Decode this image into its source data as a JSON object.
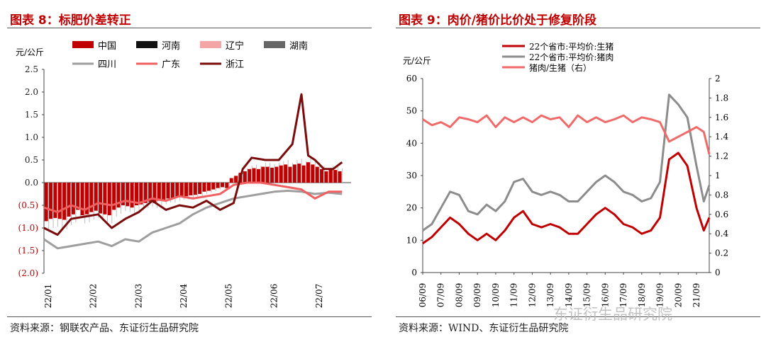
{
  "left": {
    "title": "图表 8：标肥价差转正",
    "source": "资料来源：钢联农产品、东证衍生品研究院"
  },
  "right": {
    "title": "图表 9：肉价/猪价比价处于修复阶段",
    "source": "资料来源：WIND、东证衍生品研究院"
  },
  "watermark": "东证衍生品研究院",
  "chart_data": [
    {
      "type": "bar",
      "ylabel": "元/公斤",
      "ylim": [
        -2.0,
        2.5
      ],
      "yticks": [
        "2.5",
        "2.0",
        "1.5",
        "1.0",
        "0.5",
        "0.0",
        "(0.5)",
        "(1.0)",
        "(1.5)",
        "(2.0)"
      ],
      "ytick_values": [
        2.5,
        2.0,
        1.5,
        1.0,
        0.5,
        0.0,
        -0.5,
        -1.0,
        -1.5,
        -2.0
      ],
      "x_labels": [
        "22/01",
        "22/02",
        "22/03",
        "22/04",
        "22/05",
        "22/06",
        "22/07"
      ],
      "x_label_positions": [
        0,
        1,
        2,
        3,
        4,
        5,
        6
      ],
      "x_range": [
        0,
        6.8
      ],
      "legend": [
        {
          "name": "中国",
          "color": "#c00000",
          "kind": "bar"
        },
        {
          "name": "河南",
          "color": "#111111",
          "kind": "bar"
        },
        {
          "name": "辽宁",
          "color": "#f4a6a6",
          "kind": "bar"
        },
        {
          "name": "湖南",
          "color": "#666666",
          "kind": "bar"
        },
        {
          "name": "四川",
          "color": "#9e9e9e",
          "kind": "line"
        },
        {
          "name": "广东",
          "color": "#f06060",
          "kind": "line"
        },
        {
          "name": "浙江",
          "color": "#7a0c0c",
          "kind": "line"
        }
      ],
      "bars_china": {
        "x": [
          0.05,
          0.15,
          0.25,
          0.35,
          0.45,
          0.55,
          0.65,
          0.75,
          0.85,
          0.95,
          1.05,
          1.15,
          1.25,
          1.35,
          1.45,
          1.55,
          1.65,
          1.75,
          1.85,
          1.95,
          2.05,
          2.15,
          2.25,
          2.35,
          2.45,
          2.55,
          2.65,
          2.75,
          2.85,
          2.95,
          3.05,
          3.15,
          3.25,
          3.35,
          3.45,
          3.55,
          3.65,
          3.75,
          3.85,
          3.95,
          4.05,
          4.15,
          4.25,
          4.35,
          4.45,
          4.55,
          4.65,
          4.75,
          4.85,
          4.95,
          5.05,
          5.15,
          5.25,
          5.35,
          5.45,
          5.55,
          5.65,
          5.75,
          5.85,
          5.95,
          6.05,
          6.15,
          6.25,
          6.35,
          6.45,
          6.55
        ],
        "values": [
          -0.85,
          -0.8,
          -0.78,
          -0.8,
          -0.82,
          -0.75,
          -0.7,
          -0.6,
          -0.72,
          -0.7,
          -0.65,
          -0.62,
          -0.68,
          -0.7,
          -0.72,
          -0.6,
          -0.55,
          -0.5,
          -0.52,
          -0.55,
          -0.5,
          -0.48,
          -0.45,
          -0.42,
          -0.45,
          -0.4,
          -0.38,
          -0.35,
          -0.35,
          -0.32,
          -0.3,
          -0.3,
          -0.28,
          -0.27,
          -0.25,
          -0.2,
          -0.18,
          -0.15,
          -0.12,
          -0.1,
          -0.12,
          0.1,
          0.15,
          0.22,
          0.25,
          0.3,
          0.32,
          0.3,
          0.35,
          0.35,
          0.33,
          0.35,
          0.38,
          0.4,
          0.35,
          0.4,
          0.42,
          0.38,
          0.45,
          0.4,
          0.35,
          0.3,
          0.25,
          0.3,
          0.28,
          0.25
        ]
      },
      "lines": [
        {
          "name": "四川",
          "color": "#9e9e9e",
          "x": [
            0,
            0.3,
            0.6,
            0.9,
            1.2,
            1.5,
            1.8,
            2.1,
            2.4,
            2.7,
            3.0,
            3.3,
            3.6,
            3.9,
            4.2,
            4.5,
            4.8,
            5.1,
            5.4,
            5.7,
            6.0,
            6.3,
            6.6
          ],
          "y": [
            -1.25,
            -1.45,
            -1.4,
            -1.35,
            -1.3,
            -1.4,
            -1.25,
            -1.3,
            -1.1,
            -1.0,
            -0.9,
            -0.7,
            -0.55,
            -0.45,
            -0.35,
            -0.3,
            -0.25,
            -0.2,
            -0.18,
            -0.2,
            -0.25,
            -0.22,
            -0.25
          ]
        },
        {
          "name": "广东",
          "color": "#f06060",
          "x": [
            0,
            0.3,
            0.6,
            0.9,
            1.2,
            1.5,
            1.8,
            2.1,
            2.4,
            2.7,
            3.0,
            3.3,
            3.6,
            3.9,
            4.2,
            4.5,
            4.8,
            5.1,
            5.4,
            5.7,
            6.0,
            6.3,
            6.6
          ],
          "y": [
            -0.55,
            -0.65,
            -0.5,
            -0.6,
            -0.45,
            -0.5,
            -0.4,
            -0.45,
            -0.35,
            -0.4,
            -0.3,
            -0.35,
            -0.3,
            -0.25,
            -0.05,
            0.0,
            0.0,
            -0.05,
            -0.1,
            -0.15,
            -0.35,
            -0.2,
            -0.2
          ]
        },
        {
          "name": "浙江",
          "color": "#7a0c0c",
          "x": [
            0,
            0.3,
            0.6,
            0.9,
            1.2,
            1.5,
            1.8,
            2.1,
            2.4,
            2.7,
            3.0,
            3.3,
            3.6,
            3.9,
            4.2,
            4.4,
            4.6,
            4.9,
            5.2,
            5.5,
            5.7,
            5.85,
            6.0,
            6.2,
            6.4,
            6.6
          ],
          "y": [
            -1.0,
            -1.15,
            -0.8,
            -0.75,
            -0.7,
            -1.0,
            -0.8,
            -0.65,
            -0.4,
            -0.6,
            -0.5,
            -0.55,
            -0.4,
            -0.6,
            -0.45,
            0.3,
            0.55,
            0.5,
            0.5,
            0.85,
            1.95,
            0.6,
            0.5,
            0.3,
            0.3,
            0.45
          ]
        }
      ]
    },
    {
      "type": "line",
      "ylabel": "元/公斤",
      "ylim": [
        0,
        60
      ],
      "y2lim": [
        0,
        2
      ],
      "yticks": [
        "60",
        "50",
        "40",
        "30",
        "20",
        "10",
        "0"
      ],
      "ytick_values": [
        60,
        50,
        40,
        30,
        20,
        10,
        0
      ],
      "y2ticks": [
        "2",
        "1.8",
        "1.6",
        "1.4",
        "1.2",
        "1",
        "0.8",
        "0.6",
        "0.4",
        "0.2",
        "0"
      ],
      "y2tick_values": [
        2,
        1.8,
        1.6,
        1.4,
        1.2,
        1.0,
        0.8,
        0.6,
        0.4,
        0.2,
        0
      ],
      "x_labels": [
        "06/09",
        "07/09",
        "08/09",
        "09/09",
        "10/09",
        "11/09",
        "12/09",
        "13/09",
        "14/09",
        "15/09",
        "16/09",
        "17/09",
        "18/09",
        "19/09",
        "20/09",
        "21/09"
      ],
      "x_label_positions": [
        2006,
        2007,
        2008,
        2009,
        2010,
        2011,
        2012,
        2013,
        2014,
        2015,
        2016,
        2017,
        2018,
        2019,
        2020,
        2021
      ],
      "x_range": [
        2006,
        2021.7
      ],
      "legend": [
        {
          "name": "22个省市:平均价:生猪",
          "color": "#c00000"
        },
        {
          "name": "22个省市:平均价:猪肉",
          "color": "#8c8c8c"
        },
        {
          "name": "猪肉/生猪（右）",
          "color": "#f06a6a"
        }
      ],
      "lines": [
        {
          "name": "22个省市:平均价:生猪",
          "color": "#c00000",
          "axis": "left",
          "x": [
            2006,
            2006.5,
            2007,
            2007.5,
            2008,
            2008.5,
            2009,
            2009.5,
            2010,
            2010.5,
            2011,
            2011.5,
            2012,
            2012.5,
            2013,
            2013.5,
            2014,
            2014.5,
            2015,
            2015.5,
            2016,
            2016.5,
            2017,
            2017.5,
            2018,
            2018.5,
            2019,
            2019.5,
            2020,
            2020.5,
            2021,
            2021.4,
            2021.7
          ],
          "y": [
            9,
            11,
            14,
            17,
            15,
            12,
            10,
            12,
            10,
            13,
            17,
            19,
            15,
            14,
            15,
            14,
            12,
            12,
            15,
            18,
            20,
            18,
            15,
            14,
            12,
            13,
            17,
            35,
            37,
            33,
            20,
            13,
            17
          ]
        },
        {
          "name": "22个省市:平均价:猪肉",
          "color": "#8c8c8c",
          "axis": "left",
          "x": [
            2006,
            2006.5,
            2007,
            2007.5,
            2008,
            2008.5,
            2009,
            2009.5,
            2010,
            2010.5,
            2011,
            2011.5,
            2012,
            2012.5,
            2013,
            2013.5,
            2014,
            2014.5,
            2015,
            2015.5,
            2016,
            2016.5,
            2017,
            2017.5,
            2018,
            2018.5,
            2019,
            2019.5,
            2020,
            2020.5,
            2021,
            2021.4,
            2021.7
          ],
          "y": [
            13,
            15,
            20,
            25,
            24,
            19,
            18,
            21,
            19,
            22,
            28,
            29,
            25,
            24,
            25,
            24,
            22,
            22,
            25,
            28,
            30,
            28,
            25,
            24,
            22,
            23,
            28,
            55,
            52,
            48,
            33,
            22,
            27
          ]
        },
        {
          "name": "猪肉/生猪（右）",
          "color": "#f06a6a",
          "axis": "right",
          "x": [
            2006,
            2006.5,
            2007,
            2007.5,
            2008,
            2008.5,
            2009,
            2009.5,
            2010,
            2010.5,
            2011,
            2011.5,
            2012,
            2012.5,
            2013,
            2013.5,
            2014,
            2014.5,
            2015,
            2015.5,
            2016,
            2016.5,
            2017,
            2017.5,
            2018,
            2018.5,
            2019,
            2019.5,
            2020,
            2020.5,
            2021,
            2021.4,
            2021.7
          ],
          "y": [
            1.58,
            1.52,
            1.55,
            1.5,
            1.6,
            1.58,
            1.55,
            1.62,
            1.5,
            1.6,
            1.55,
            1.6,
            1.55,
            1.62,
            1.58,
            1.6,
            1.5,
            1.62,
            1.55,
            1.6,
            1.55,
            1.58,
            1.62,
            1.55,
            1.6,
            1.58,
            1.55,
            1.35,
            1.4,
            1.45,
            1.5,
            1.45,
            1.22
          ]
        }
      ]
    }
  ]
}
